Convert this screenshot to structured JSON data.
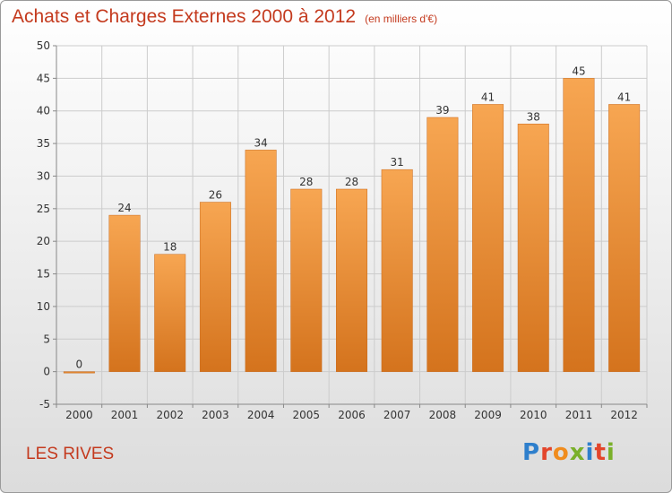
{
  "header": {
    "title": "Achats et Charges Externes 2000 à 2012",
    "subtitle": "(en milliers d'€)"
  },
  "footer": {
    "commune": "LES RIVES",
    "logo_text": "Proxiti"
  },
  "colors": {
    "title": "#c43a1e",
    "bar_top": "#f7a652",
    "bar_bottom": "#d4731d",
    "grid": "#cccccc"
  },
  "chart_data": {
    "type": "bar",
    "title": "Achats et Charges Externes 2000 à 2012",
    "subtitle": "(en milliers d'€)",
    "xlabel": "",
    "ylabel": "",
    "categories": [
      "2000",
      "2001",
      "2002",
      "2003",
      "2004",
      "2005",
      "2006",
      "2007",
      "2008",
      "2009",
      "2010",
      "2011",
      "2012"
    ],
    "values": [
      0,
      24,
      18,
      26,
      34,
      28,
      28,
      31,
      39,
      41,
      38,
      45,
      41
    ],
    "ylim": [
      -5,
      50
    ],
    "yticks": [
      -5,
      0,
      5,
      10,
      15,
      20,
      25,
      30,
      35,
      40,
      45,
      50
    ],
    "grid": true,
    "legend": "none"
  }
}
